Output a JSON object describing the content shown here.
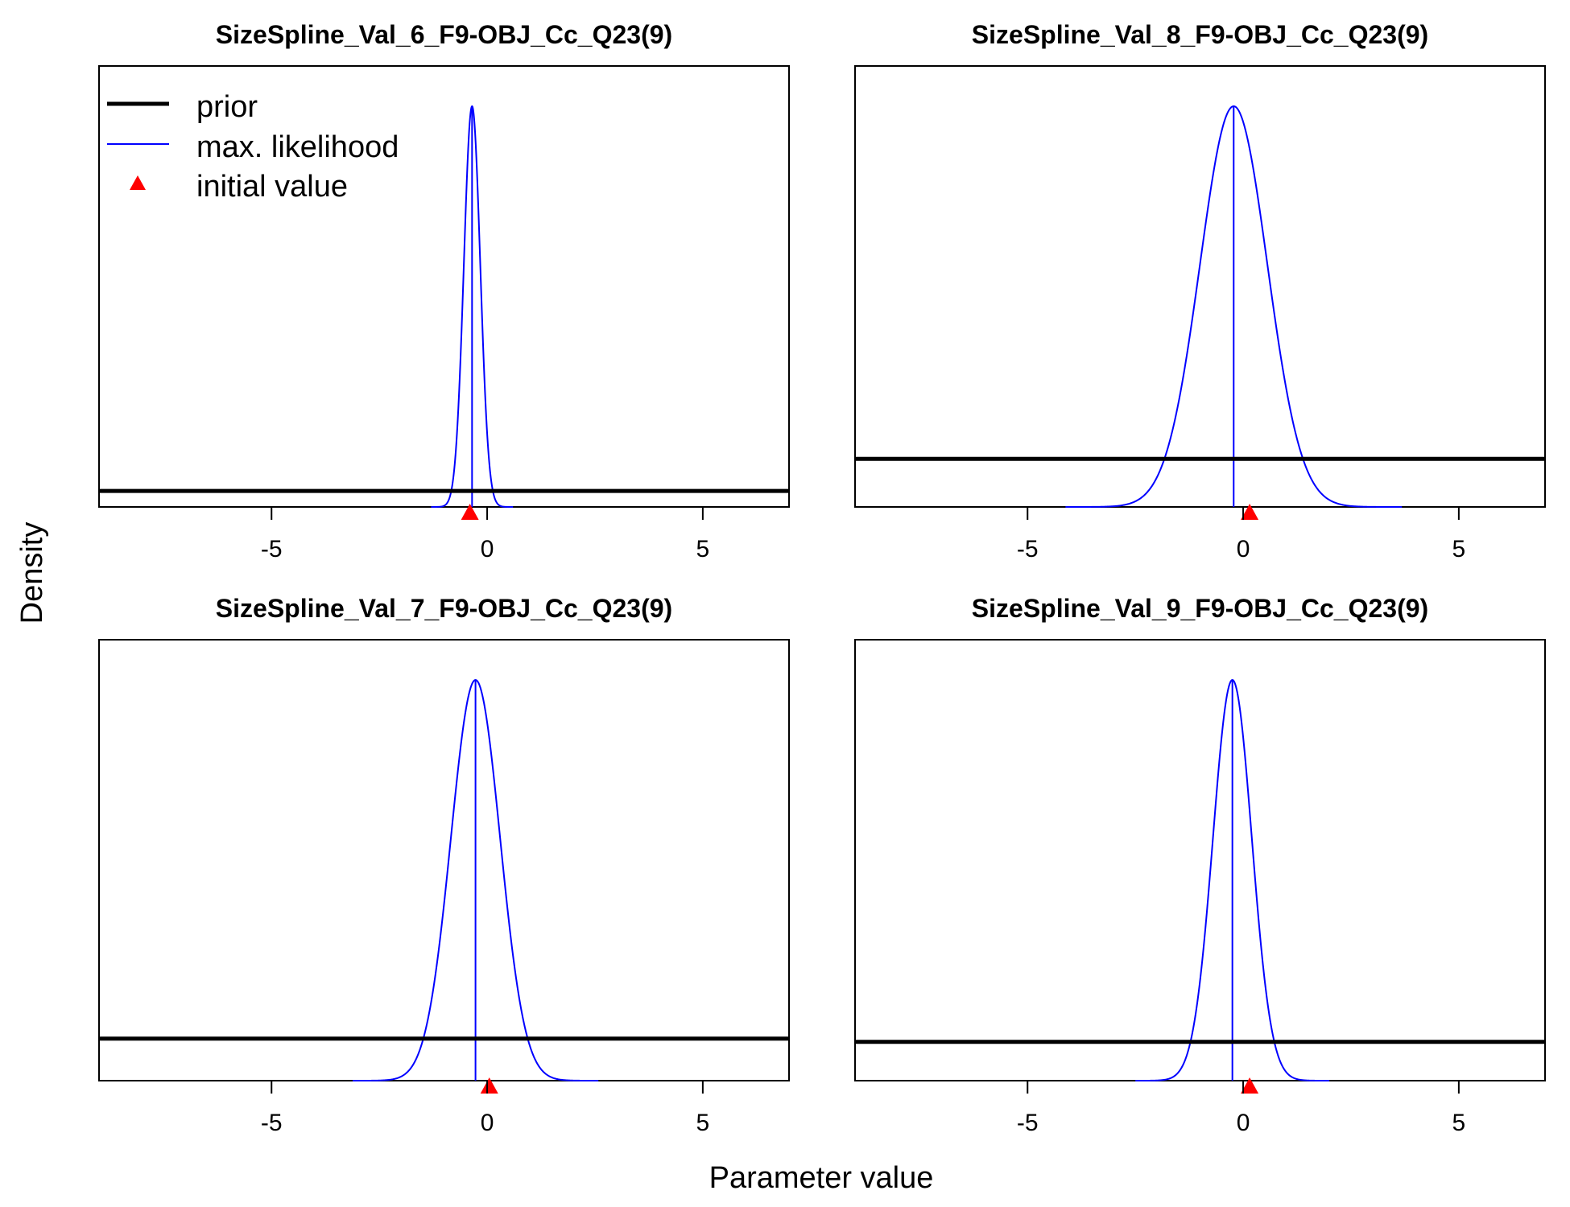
{
  "figure": {
    "xlabel": "Parameter value",
    "ylabel": "Density"
  },
  "legend": {
    "placement": "top-left of first panel",
    "items": [
      {
        "label": "prior",
        "color": "#000000",
        "style": "thick-line"
      },
      {
        "label": "max. likelihood",
        "color": "#0000ff",
        "style": "thin-line"
      },
      {
        "label": "initial value",
        "color": "#ff0000",
        "style": "triangle"
      }
    ]
  },
  "colors": {
    "prior": "#000000",
    "likelihood": "#0000ff",
    "initial": "#ff0000"
  },
  "chart_data": [
    {
      "type": "line",
      "title": "SizeSpline_Val_6_F9-OBJ_Cc_Q23(9)",
      "xlim": [
        -9,
        7
      ],
      "xticks": [
        -5,
        0,
        5
      ],
      "mle": -0.35,
      "sd": 0.19,
      "prior_level": 0.04,
      "initial": -0.4
    },
    {
      "type": "line",
      "title": "SizeSpline_Val_8_F9-OBJ_Cc_Q23(9)",
      "xlim": [
        -9,
        7
      ],
      "xticks": [
        -5,
        0,
        5
      ],
      "mle": -0.22,
      "sd": 0.78,
      "prior_level": 0.12,
      "initial": 0.15
    },
    {
      "type": "line",
      "title": "SizeSpline_Val_7_F9-OBJ_Cc_Q23(9)",
      "xlim": [
        -9,
        7
      ],
      "xticks": [
        -5,
        0,
        5
      ],
      "mle": -0.27,
      "sd": 0.57,
      "prior_level": 0.105,
      "initial": 0.05
    },
    {
      "type": "line",
      "title": "SizeSpline_Val_9_F9-OBJ_Cc_Q23(9)",
      "xlim": [
        -9,
        7
      ],
      "xticks": [
        -5,
        0,
        5
      ],
      "mle": -0.25,
      "sd": 0.45,
      "prior_level": 0.097,
      "initial": 0.15
    }
  ]
}
